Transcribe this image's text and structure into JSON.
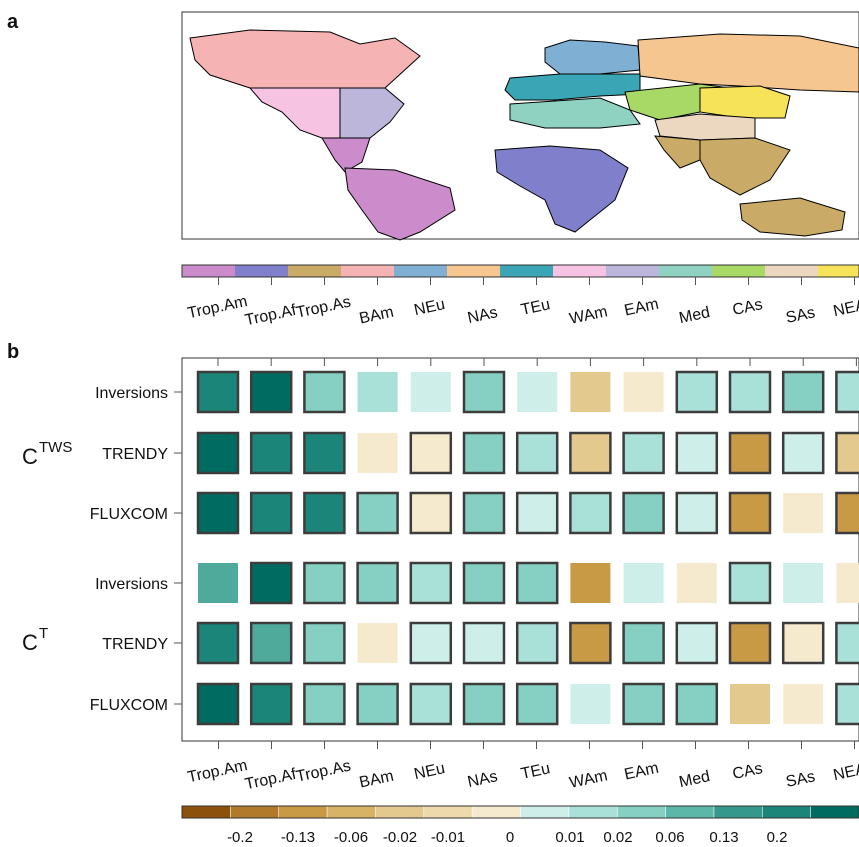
{
  "panel_a": {
    "label": "a",
    "regions": [
      {
        "code": "Trop.Am",
        "color": "#cc8ccc"
      },
      {
        "code": "Trop.Af",
        "color": "#7f7fcc"
      },
      {
        "code": "Trop.As",
        "color": "#c9aa66"
      },
      {
        "code": "BAm",
        "color": "#f6b3b3"
      },
      {
        "code": "NEu",
        "color": "#7fb0d4"
      },
      {
        "code": "NAs",
        "color": "#f6c690"
      },
      {
        "code": "TEu",
        "color": "#3aa6b5"
      },
      {
        "code": "WAm",
        "color": "#f6c3e3"
      },
      {
        "code": "EAm",
        "color": "#bcb6db"
      },
      {
        "code": "Med",
        "color": "#8fd2c2"
      },
      {
        "code": "CAs",
        "color": "#a8d865"
      },
      {
        "code": "SAs",
        "color": "#ecd8c0"
      },
      {
        "code": "NEAs",
        "color": "#f6e35a"
      }
    ]
  },
  "chart_data": {
    "type": "heatmap",
    "label": "b",
    "columns": [
      "Trop.Am",
      "Trop.Af",
      "Trop.As",
      "BAm",
      "NEu",
      "NAs",
      "TEu",
      "WAm",
      "EAm",
      "Med",
      "CAs",
      "SAs",
      "NEAs"
    ],
    "groups": [
      {
        "name_base": "C",
        "name_sup": "TWS",
        "rows": [
          {
            "name": "Inversions",
            "values": [
              0.2,
              0.3,
              0.06,
              0.02,
              0.01,
              0.06,
              0.01,
              -0.02,
              -0.01,
              0.02,
              0.02,
              0.06,
              0.02
            ],
            "outlined": [
              true,
              true,
              true,
              false,
              false,
              true,
              false,
              false,
              false,
              true,
              true,
              true,
              true
            ]
          },
          {
            "name": "TRENDY",
            "values": [
              0.3,
              0.2,
              0.2,
              -0.01,
              -0.01,
              0.06,
              0.02,
              -0.02,
              0.02,
              0.01,
              -0.06,
              0.01,
              -0.02
            ],
            "outlined": [
              true,
              true,
              true,
              false,
              true,
              true,
              true,
              true,
              true,
              true,
              true,
              true,
              true
            ]
          },
          {
            "name": "FLUXCOM",
            "values": [
              0.3,
              0.2,
              0.2,
              0.06,
              -0.01,
              0.06,
              0.01,
              0.02,
              0.06,
              0.01,
              -0.06,
              -0.01,
              -0.06
            ],
            "outlined": [
              true,
              true,
              true,
              true,
              true,
              true,
              true,
              true,
              true,
              true,
              true,
              false,
              true
            ]
          }
        ]
      },
      {
        "name_base": "C",
        "name_sup": "T",
        "rows": [
          {
            "name": "Inversions",
            "values": [
              0.13,
              0.3,
              0.06,
              0.06,
              0.02,
              0.06,
              0.06,
              -0.06,
              0.01,
              -0.01,
              0.02,
              0.01,
              -0.01
            ],
            "outlined": [
              false,
              true,
              true,
              true,
              true,
              true,
              true,
              false,
              false,
              false,
              true,
              false,
              false
            ]
          },
          {
            "name": "TRENDY",
            "values": [
              0.2,
              0.13,
              0.06,
              -0.01,
              0.01,
              0.01,
              0.02,
              -0.06,
              0.06,
              0.01,
              -0.06,
              -0.01,
              0.02
            ],
            "outlined": [
              true,
              true,
              true,
              false,
              true,
              true,
              true,
              true,
              true,
              true,
              true,
              true,
              true
            ]
          },
          {
            "name": "FLUXCOM",
            "values": [
              0.3,
              0.2,
              0.06,
              0.06,
              0.02,
              0.06,
              0.06,
              0.01,
              0.06,
              0.06,
              -0.02,
              -0.01,
              0.02
            ],
            "outlined": [
              true,
              true,
              true,
              true,
              true,
              true,
              true,
              false,
              true,
              true,
              false,
              false,
              true
            ]
          }
        ]
      }
    ],
    "colorbar": {
      "ticks": [
        "-0.2",
        "-0.13",
        "-0.06",
        "-0.02",
        "-0.01",
        "0",
        "0.01",
        "0.02",
        "0.06",
        "0.13",
        "0.2"
      ],
      "colors": [
        "#8c510a",
        "#b07a2a",
        "#c99a46",
        "#d7b365",
        "#e3c98e",
        "#edd9ab",
        "#f5eacd",
        "#cdeee9",
        "#a9e0d8",
        "#86d0c3",
        "#5cb7a9",
        "#34998c",
        "#1b8579",
        "#006b60"
      ],
      "scale": [
        {
          "max": -0.165,
          "color": "#8c510a"
        },
        {
          "max": -0.095,
          "color": "#b07a2a"
        },
        {
          "max": -0.04,
          "color": "#c99a46"
        },
        {
          "max": -0.035,
          "color": "#d7b365"
        },
        {
          "max": -0.015,
          "color": "#e3c98e"
        },
        {
          "max": -0.005,
          "color": "#f5eacd"
        },
        {
          "max": 0.015,
          "color": "#cdeee9"
        },
        {
          "max": 0.04,
          "color": "#a9e0d8"
        },
        {
          "max": 0.09,
          "color": "#86d0c3"
        },
        {
          "max": 0.165,
          "color": "#4faa9c"
        },
        {
          "max": 0.25,
          "color": "#1b8579"
        },
        {
          "max": 99,
          "color": "#006b60"
        }
      ]
    }
  }
}
